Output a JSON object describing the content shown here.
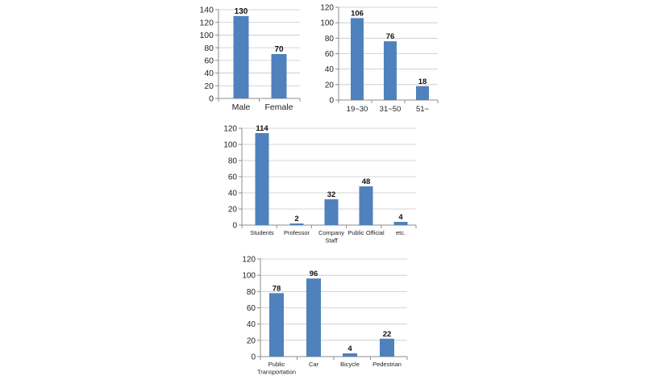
{
  "chart_data": [
    {
      "type": "bar",
      "categories": [
        "Male",
        "Female"
      ],
      "values": [
        130,
        70
      ],
      "ylim": [
        0,
        140
      ],
      "yticks": [
        0,
        20,
        40,
        60,
        80,
        100,
        120,
        140
      ],
      "grid": true,
      "bar_color": "#4f81bd"
    },
    {
      "type": "bar",
      "categories": [
        "19~30",
        "31~50",
        "51~"
      ],
      "values": [
        106,
        76,
        18
      ],
      "ylim": [
        0,
        120
      ],
      "yticks": [
        0,
        20,
        40,
        60,
        80,
        100,
        120
      ],
      "grid": true,
      "bar_color": "#4f81bd"
    },
    {
      "type": "bar",
      "categories": [
        "Students",
        "Professor",
        "Company Staff",
        "Public Official",
        "etc."
      ],
      "values": [
        114,
        2,
        32,
        48,
        4
      ],
      "ylim": [
        0,
        120
      ],
      "yticks": [
        0,
        20,
        40,
        60,
        80,
        100,
        120
      ],
      "grid": true,
      "bar_color": "#4f81bd"
    },
    {
      "type": "bar",
      "categories": [
        "Public Transportation",
        "Car",
        "Bicycle",
        "Pedestrian"
      ],
      "values": [
        78,
        96,
        4,
        22
      ],
      "ylim": [
        0,
        120
      ],
      "yticks": [
        0,
        20,
        40,
        60,
        80,
        100,
        120
      ],
      "grid": true,
      "bar_color": "#4f81bd"
    }
  ]
}
